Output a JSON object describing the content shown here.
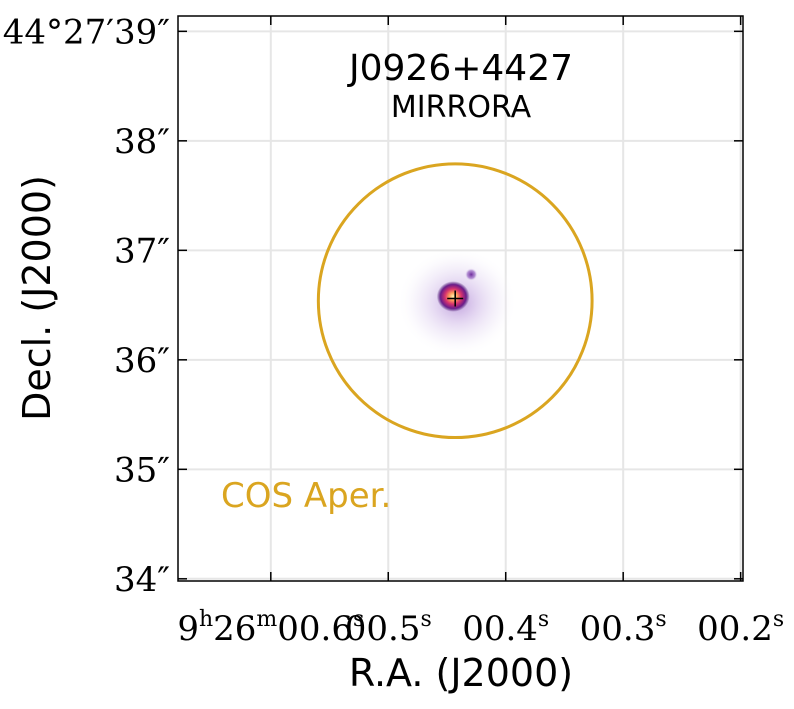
{
  "chart_data": {
    "type": "image",
    "title": "J0926+4427",
    "subtitle": "MIRRORA",
    "xlabel": "R.A. (J2000)",
    "ylabel": "Decl. (J2000)",
    "x_ticks": [
      {
        "value": 0.6,
        "label_parts": [
          "9",
          "h",
          "26",
          "m",
          "00.6",
          "s"
        ]
      },
      {
        "value": 0.5,
        "label_parts": [
          "00.5",
          "s"
        ]
      },
      {
        "value": 0.4,
        "label_parts": [
          "00.4",
          "s"
        ]
      },
      {
        "value": 0.3,
        "label_parts": [
          "00.3",
          "s"
        ]
      },
      {
        "value": 0.2,
        "label_parts": [
          "00.2",
          "s"
        ]
      }
    ],
    "y_ticks": [
      {
        "value": 39,
        "label": "44°27′39″"
      },
      {
        "value": 38,
        "label": "38″"
      },
      {
        "value": 37,
        "label": "37″"
      },
      {
        "value": 36,
        "label": "36″"
      },
      {
        "value": 35,
        "label": "35″"
      },
      {
        "value": 34,
        "label": "34″"
      }
    ],
    "xlim": [
      0.679,
      0.198
    ],
    "ylim": [
      33.98,
      39.14
    ],
    "grid": true,
    "source": {
      "ra_s": 0.443,
      "dec_arcsec": 36.56
    },
    "aperture": {
      "label": "COS Aper.",
      "center_ra_s": 0.443,
      "center_dec_arcsec": 36.54,
      "radius_arcsec": 1.25,
      "color": "#DAA520"
    },
    "colormap": "magma_r",
    "marker_color": "#000000"
  }
}
